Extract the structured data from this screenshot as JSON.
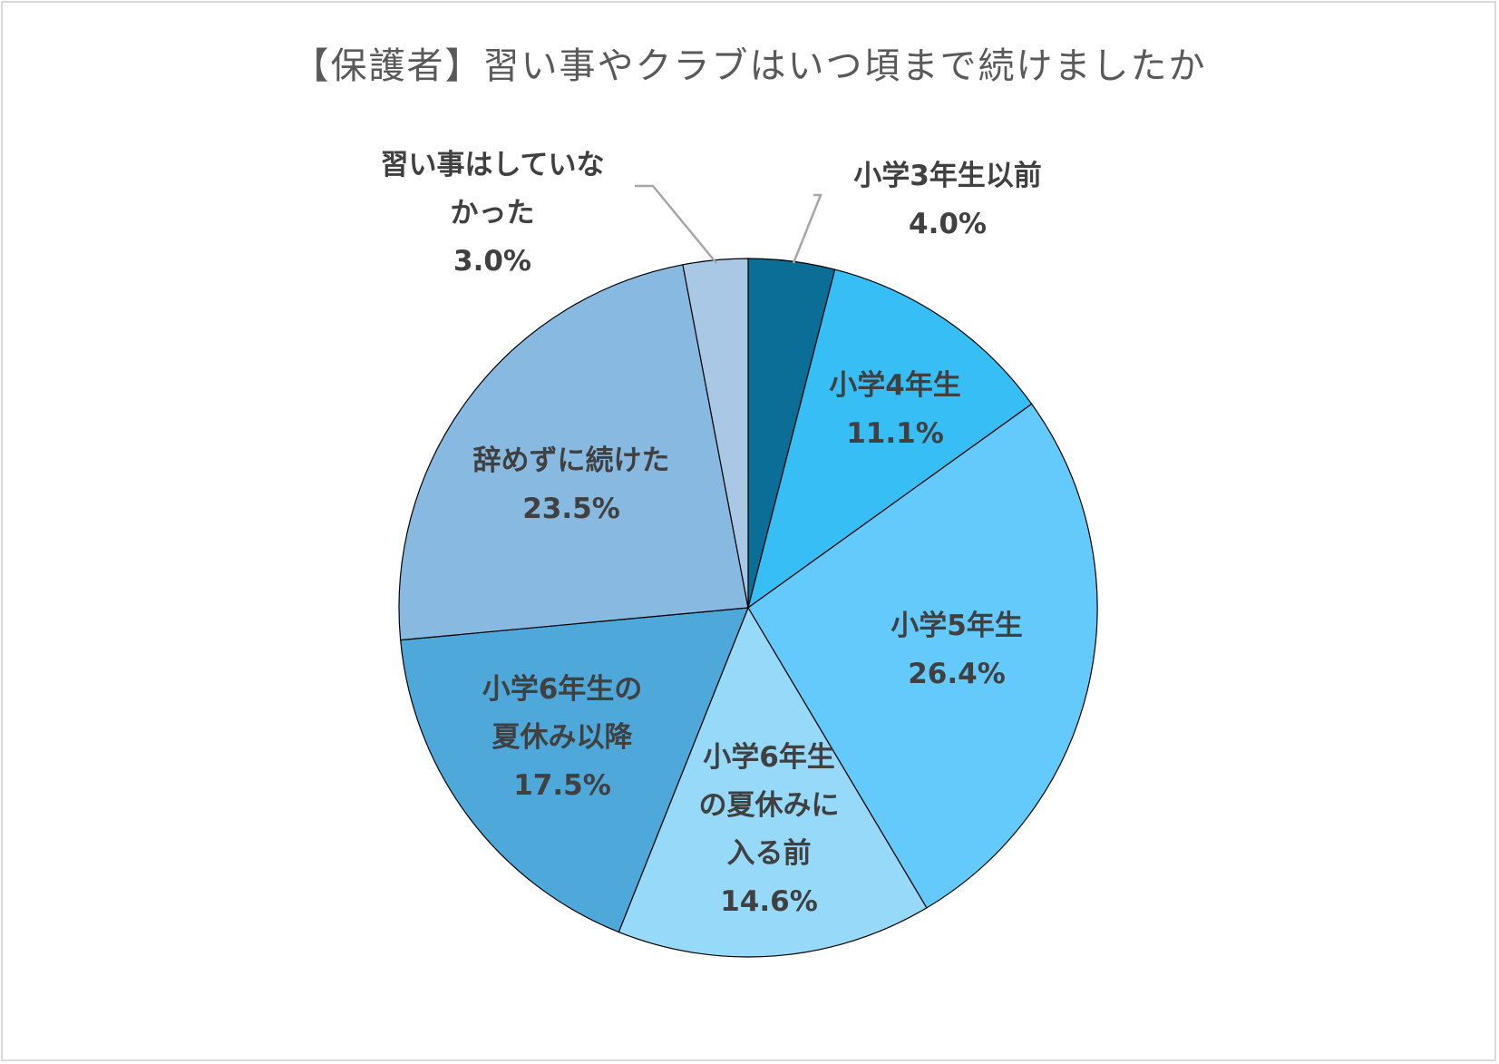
{
  "chart_data": {
    "type": "pie",
    "title": "【保護者】習い事やクラブはいつ頃まで続けましたか",
    "unit": "%",
    "slices": [
      {
        "name": "小学3年生以前",
        "value": 4.0,
        "value_label": "4.0%",
        "label_lines": [
          "小学3年生以前"
        ],
        "color": "#0B6E96"
      },
      {
        "name": "小学4年生",
        "value": 11.1,
        "value_label": "11.1%",
        "label_lines": [
          "小学4年生"
        ],
        "color": "#36BEF5"
      },
      {
        "name": "小学5年生",
        "value": 26.4,
        "value_label": "26.4%",
        "label_lines": [
          "小学5年生"
        ],
        "color": "#64C9FB"
      },
      {
        "name": "小学6年生の夏休みに入る前",
        "value": 14.6,
        "value_label": "14.6%",
        "label_lines": [
          "小学6年生",
          "の夏休みに",
          "入る前"
        ],
        "color": "#96D9F8"
      },
      {
        "name": "小学6年生の夏休み以降",
        "value": 17.5,
        "value_label": "17.5%",
        "label_lines": [
          "小学6年生の",
          "夏休み以降"
        ],
        "color": "#4EA8DA"
      },
      {
        "name": "辞めずに続けた",
        "value": 23.5,
        "value_label": "23.5%",
        "label_lines": [
          "辞めずに続けた"
        ],
        "color": "#88BAE1"
      },
      {
        "name": "習い事はしていなかった",
        "value": 3.0,
        "value_label": "3.0%",
        "label_lines": [
          "習い事はしていな",
          "かった"
        ],
        "color": "#A8C8E6"
      }
    ],
    "start_angle_deg": 0,
    "direction": "clockwise",
    "legend": "none",
    "slice_border_color": "#000000",
    "leader_line_color": "#a6a6a6"
  }
}
